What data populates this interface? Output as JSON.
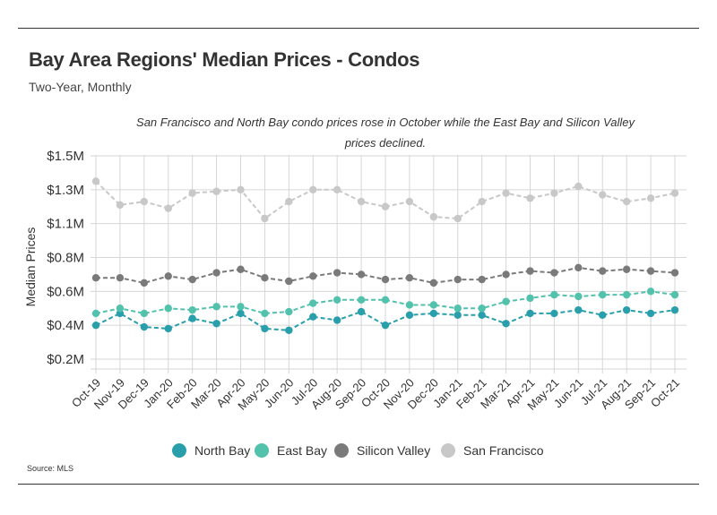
{
  "header": {
    "title": "Bay Area Regions' Median Prices - Condos",
    "subtitle": "Two-Year, Monthly"
  },
  "annotation": "San Francisco and North Bay condo prices rose in October while the East Bay and Silicon Valley prices declined.",
  "source": "Source:  MLS",
  "colors": {
    "north_bay": "#2a9fac",
    "east_bay": "#52c2ad",
    "silicon_valley": "#7a7a7a",
    "san_francisco": "#c8c8c8",
    "grid": "#d6d6d6"
  },
  "chart_data": {
    "type": "line",
    "title": "Bay Area Regions' Median Prices - Condos",
    "subtitle": "Two-Year, Monthly",
    "ylabel": "Median Prices",
    "xlabel": "",
    "ylim": [
      0.175,
      1.5
    ],
    "y_ticks": [
      {
        "value": 0.2,
        "label": "$0.2M"
      },
      {
        "value": 0.4,
        "label": "$0.4M"
      },
      {
        "value": 0.6,
        "label": "$0.6M"
      },
      {
        "value": 0.8,
        "label": "$0.8M"
      },
      {
        "value": 1.1,
        "label": "$1.1M"
      },
      {
        "value": 1.3,
        "label": "$1.3M"
      },
      {
        "value": 1.5,
        "label": "$1.5M"
      }
    ],
    "grid": true,
    "legend": "bottom",
    "x": [
      "Oct-19",
      "Nov-19",
      "Dec-19",
      "Jan-20",
      "Feb-20",
      "Mar-20",
      "Apr-20",
      "May-20",
      "Jun-20",
      "Jul-20",
      "Aug-20",
      "Sep-20",
      "Oct-20",
      "Nov-20",
      "Dec-20",
      "Jan-21",
      "Feb-21",
      "Mar-21",
      "Apr-21",
      "May-21",
      "Jun-21",
      "Jul-21",
      "Aug-21",
      "Sep-21",
      "Oct-21"
    ],
    "series": [
      {
        "name": "North Bay",
        "color_key": "north_bay",
        "values": [
          0.4,
          0.47,
          0.39,
          0.38,
          0.44,
          0.41,
          0.47,
          0.38,
          0.37,
          0.45,
          0.43,
          0.48,
          0.4,
          0.46,
          0.47,
          0.46,
          0.46,
          0.41,
          0.47,
          0.47,
          0.49,
          0.46,
          0.49,
          0.47,
          0.49
        ]
      },
      {
        "name": "East Bay",
        "color_key": "east_bay",
        "values": [
          0.47,
          0.5,
          0.47,
          0.5,
          0.49,
          0.51,
          0.51,
          0.47,
          0.48,
          0.53,
          0.55,
          0.55,
          0.55,
          0.52,
          0.52,
          0.5,
          0.5,
          0.54,
          0.56,
          0.58,
          0.57,
          0.58,
          0.58,
          0.6,
          0.58
        ]
      },
      {
        "name": "Silicon Valley",
        "color_key": "silicon_valley",
        "values": [
          0.68,
          0.68,
          0.65,
          0.69,
          0.67,
          0.71,
          0.73,
          0.68,
          0.66,
          0.69,
          0.71,
          0.7,
          0.67,
          0.68,
          0.65,
          0.67,
          0.67,
          0.7,
          0.72,
          0.71,
          0.74,
          0.72,
          0.73,
          0.72,
          0.71
        ]
      },
      {
        "name": "San Francisco",
        "color_key": "san_francisco",
        "values": [
          1.35,
          1.21,
          1.23,
          1.19,
          1.28,
          1.29,
          1.3,
          1.13,
          1.23,
          1.3,
          1.3,
          1.23,
          1.2,
          1.23,
          1.14,
          1.13,
          1.23,
          1.28,
          1.25,
          1.28,
          1.32,
          1.27,
          1.23,
          1.25,
          1.28
        ]
      }
    ]
  }
}
